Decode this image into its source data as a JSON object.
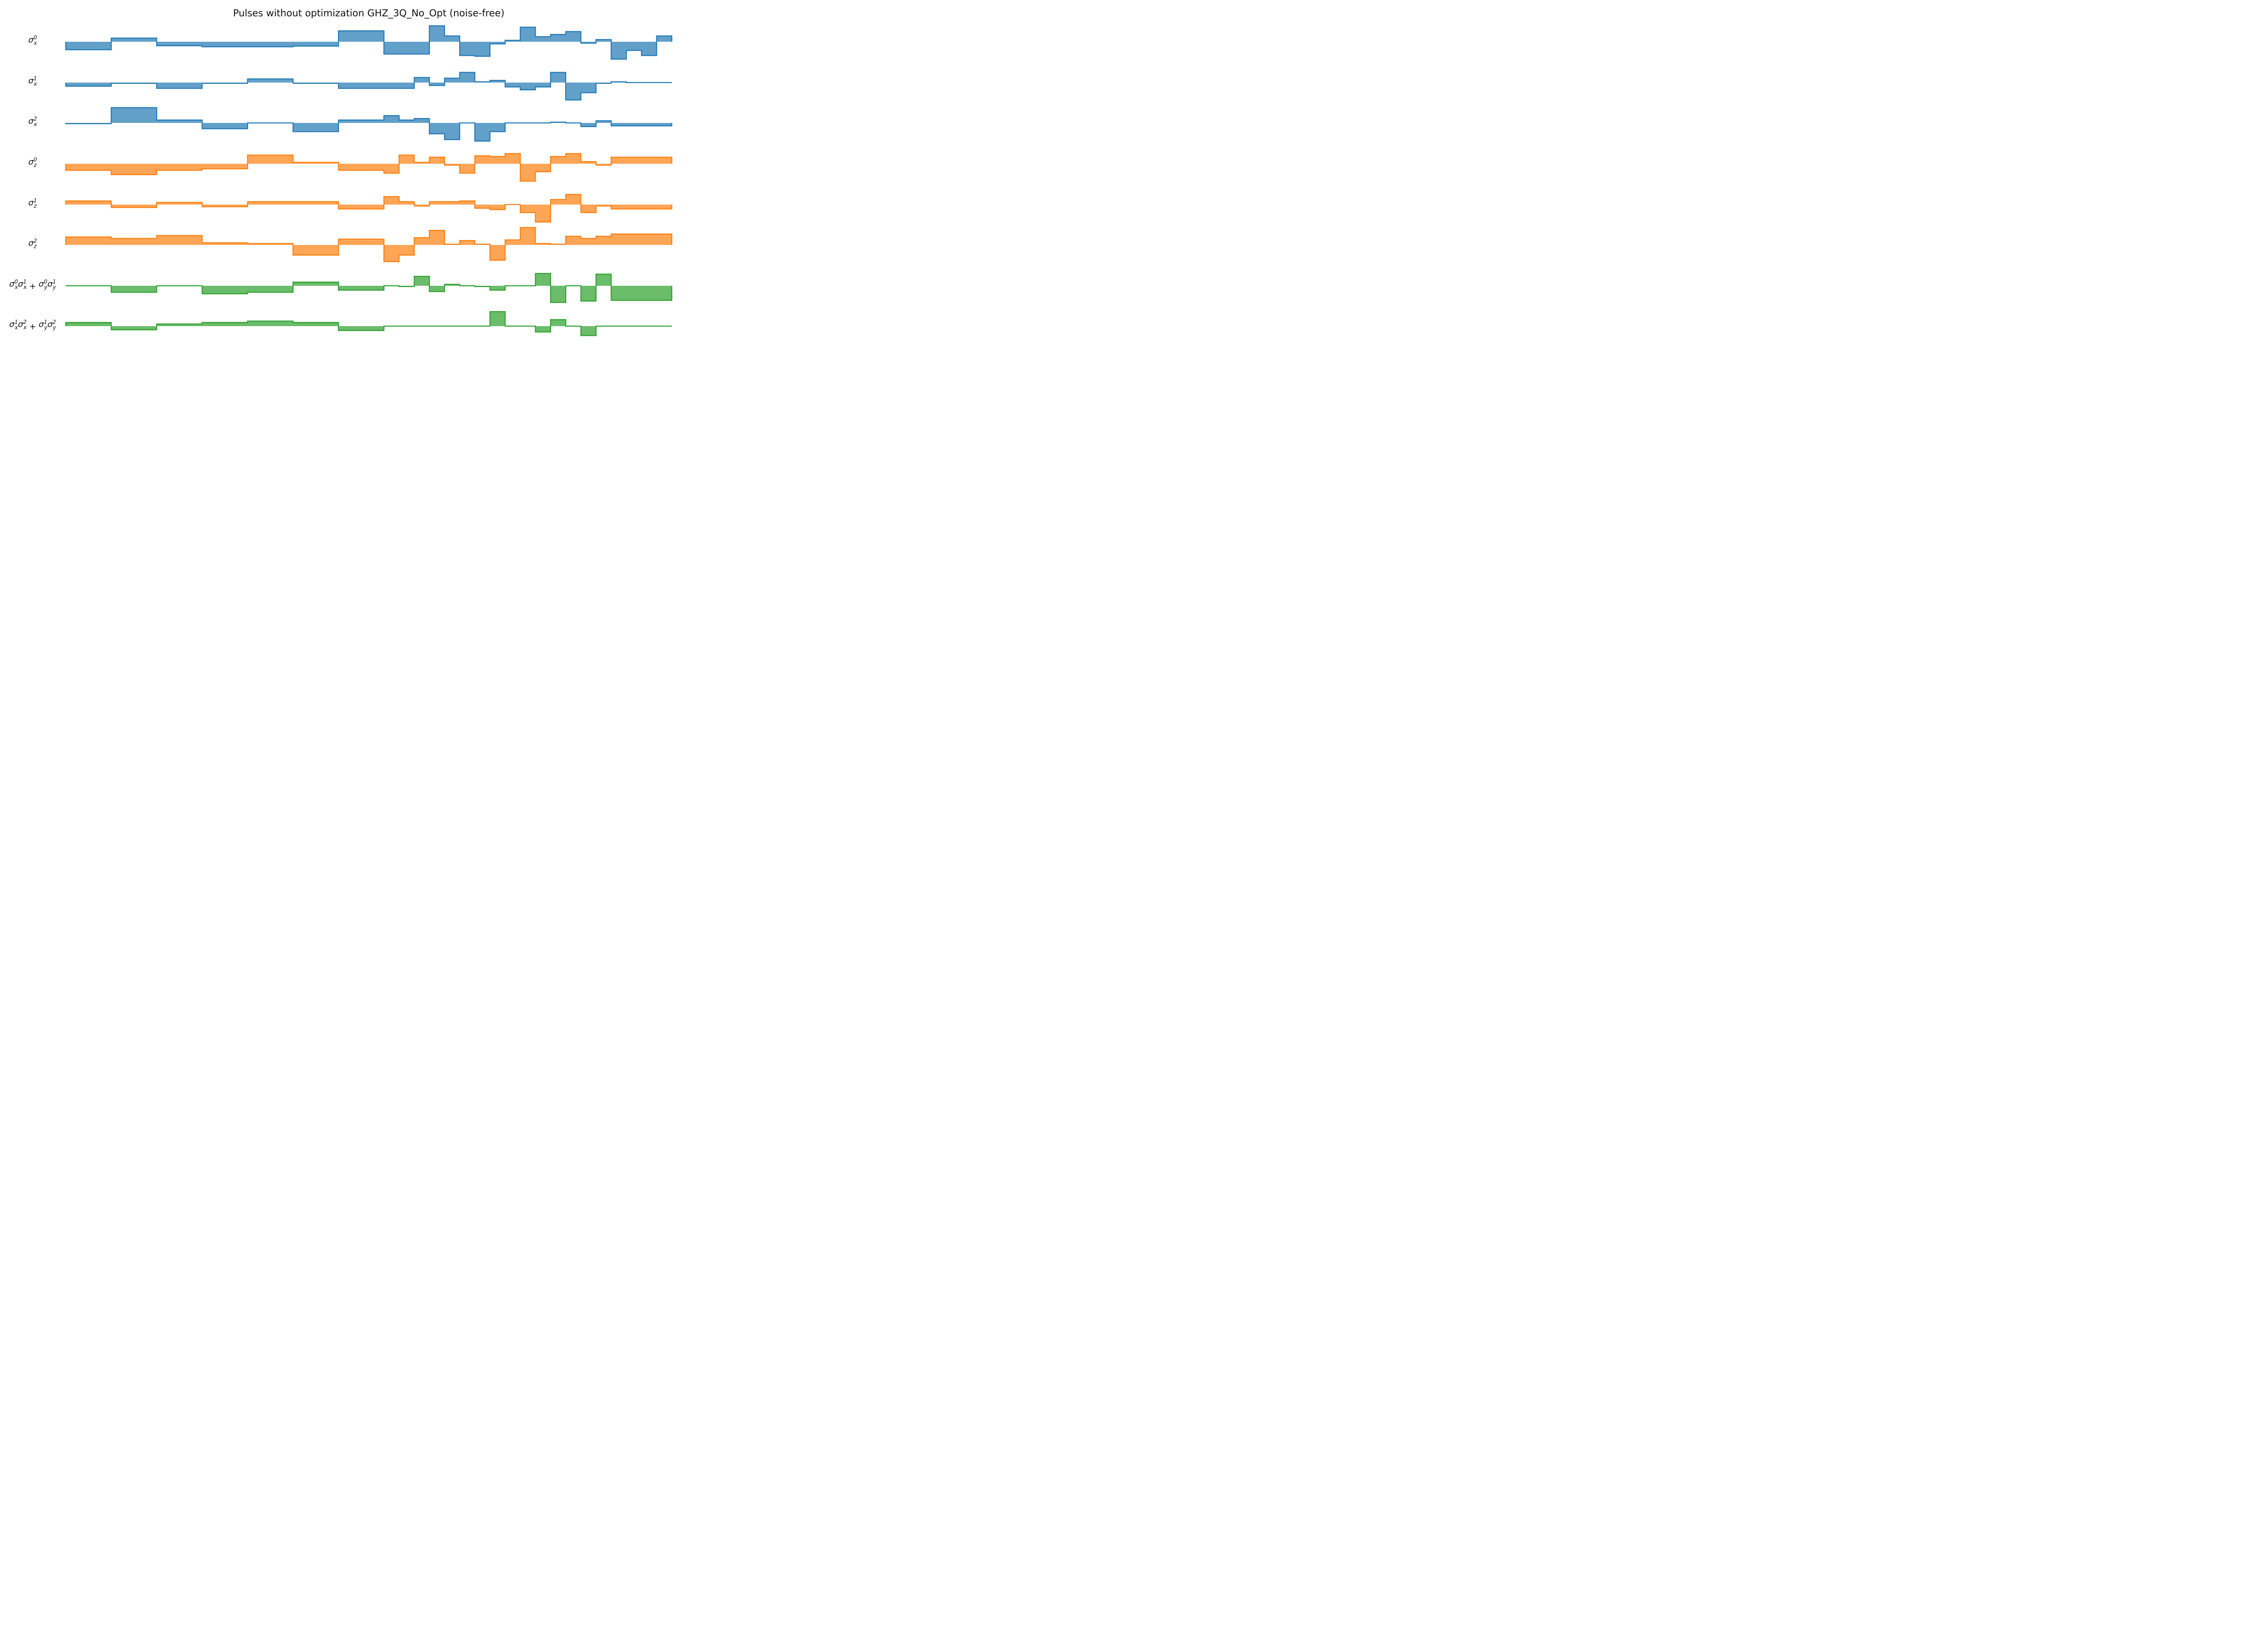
{
  "chart_data": {
    "type": "area",
    "title": "Pulses without optimization GHZ_3Q_No_Opt (noise-free)",
    "x": [
      0,
      1,
      2,
      3,
      4,
      5,
      6,
      7,
      8,
      9,
      10,
      11,
      12,
      13,
      14,
      15,
      16,
      17,
      18,
      19,
      20,
      21,
      22,
      23,
      24,
      25,
      26,
      27,
      28,
      29,
      30,
      31,
      32,
      33,
      34,
      35,
      36,
      37,
      38,
      39,
      40
    ],
    "step": "post",
    "axes_visible": false,
    "grid": false,
    "colors": {
      "x_terms": "#1f77b4",
      "z_terms": "#ff7f0e",
      "xy_terms": "#2ca02c"
    },
    "series": [
      {
        "label_base": "σ",
        "label_sup": "0",
        "label_sub": "x",
        "color_group": "x_terms",
        "values": [
          -0.55,
          -0.55,
          -0.55,
          0.25,
          0.25,
          0.25,
          -0.28,
          -0.28,
          -0.28,
          -0.35,
          -0.35,
          -0.35,
          -0.35,
          -0.35,
          -0.35,
          -0.3,
          -0.3,
          -0.3,
          0.75,
          0.75,
          0.75,
          -0.85,
          -0.85,
          -0.85,
          1.1,
          0.4,
          -0.95,
          -1.0,
          -0.15,
          0.1,
          1.0,
          0.35,
          0.5,
          0.7,
          -0.1,
          0.15,
          -1.2,
          -0.6,
          -0.95,
          0.4,
          0.4
        ]
      },
      {
        "label_base": "σ",
        "label_sup": "1",
        "label_sub": "x",
        "color_group": "x_terms",
        "values": [
          -0.25,
          -0.25,
          -0.25,
          -0.05,
          -0.05,
          -0.05,
          -0.4,
          -0.4,
          -0.4,
          -0.05,
          -0.05,
          -0.05,
          0.25,
          0.25,
          0.25,
          -0.05,
          -0.05,
          -0.05,
          -0.4,
          -0.4,
          -0.4,
          -0.4,
          -0.4,
          0.35,
          -0.2,
          0.3,
          0.7,
          0.05,
          0.15,
          -0.3,
          -0.5,
          -0.3,
          0.7,
          -1.2,
          -0.7,
          -0.05,
          0.05,
          0.0,
          0.0,
          0.0,
          0.0
        ]
      },
      {
        "label_base": "σ",
        "label_sup": "2",
        "label_sub": "x",
        "color_group": "x_terms",
        "values": [
          -0.05,
          -0.05,
          -0.05,
          1.05,
          1.05,
          1.05,
          0.2,
          0.2,
          0.2,
          -0.4,
          -0.4,
          -0.4,
          0.0,
          0.0,
          0.0,
          -0.6,
          -0.6,
          -0.6,
          0.2,
          0.2,
          0.2,
          0.5,
          0.2,
          0.3,
          -0.75,
          -1.15,
          0.0,
          -1.25,
          -0.6,
          0.0,
          0.0,
          0.0,
          0.05,
          0.0,
          -0.25,
          0.15,
          -0.2,
          -0.2,
          -0.2,
          -0.2,
          -0.2
        ]
      },
      {
        "label_base": "σ",
        "label_sup": "0",
        "label_sub": "z",
        "color_group": "z_terms",
        "values": [
          -0.45,
          -0.45,
          -0.45,
          -0.75,
          -0.75,
          -0.75,
          -0.45,
          -0.45,
          -0.45,
          -0.35,
          -0.35,
          -0.35,
          0.6,
          0.6,
          0.6,
          0.1,
          0.1,
          0.1,
          -0.45,
          -0.45,
          -0.45,
          -0.65,
          0.6,
          0.1,
          0.45,
          -0.1,
          -0.65,
          0.55,
          0.5,
          0.7,
          -1.2,
          -0.55,
          0.5,
          0.7,
          0.15,
          -0.1,
          0.45,
          0.45,
          0.45,
          0.45,
          0.45
        ]
      },
      {
        "label_base": "σ",
        "label_sup": "1",
        "label_sub": "z",
        "color_group": "z_terms",
        "values": [
          0.25,
          0.25,
          0.25,
          -0.2,
          -0.2,
          -0.2,
          0.15,
          0.15,
          0.15,
          -0.15,
          -0.15,
          -0.15,
          0.2,
          0.2,
          0.2,
          0.2,
          0.2,
          0.2,
          -0.3,
          -0.3,
          -0.3,
          0.55,
          0.2,
          -0.1,
          0.2,
          0.2,
          0.25,
          -0.25,
          -0.35,
          0.0,
          -0.55,
          -1.2,
          0.35,
          0.7,
          -0.55,
          -0.1,
          -0.3,
          -0.3,
          -0.3,
          -0.3,
          -0.3
        ]
      },
      {
        "label_base": "σ",
        "label_sup": "2",
        "label_sub": "z",
        "color_group": "z_terms",
        "values": [
          0.55,
          0.55,
          0.55,
          0.45,
          0.45,
          0.45,
          0.65,
          0.65,
          0.65,
          0.15,
          0.15,
          0.15,
          0.1,
          0.1,
          0.1,
          -0.7,
          -0.7,
          -0.7,
          0.4,
          0.4,
          0.4,
          -1.15,
          -0.7,
          0.5,
          1.0,
          0.05,
          0.3,
          0.05,
          -1.05,
          0.35,
          1.2,
          0.1,
          0.05,
          0.6,
          0.45,
          0.6,
          0.75,
          0.75,
          0.75,
          0.75,
          0.75
        ]
      },
      {
        "label_base": "σ",
        "label_sup_a": "0",
        "label_sub_a": "x",
        "label_sup_b": "1",
        "label_sub_b": "x",
        "label_sup_c": "0",
        "label_sub_c": "y",
        "label_sup_d": "1",
        "label_sub_d": "y",
        "color_group": "xy_terms",
        "values": [
          0.0,
          0.0,
          0.0,
          -0.45,
          -0.45,
          -0.45,
          0.0,
          0.0,
          0.0,
          -0.55,
          -0.55,
          -0.55,
          -0.45,
          -0.45,
          -0.45,
          0.25,
          0.25,
          0.25,
          -0.3,
          -0.3,
          -0.3,
          0.0,
          -0.05,
          0.65,
          -0.4,
          0.1,
          0.0,
          -0.05,
          -0.3,
          0.0,
          0.0,
          0.85,
          -1.15,
          0.0,
          -1.05,
          0.8,
          -1.0,
          -1.0,
          -1.0,
          -1.0,
          -1.0
        ]
      },
      {
        "label_base": "σ",
        "label_sup_a": "1",
        "label_sub_a": "x",
        "label_sup_b": "2",
        "label_sub_b": "x",
        "label_sup_c": "1",
        "label_sub_c": "y",
        "label_sup_d": "2",
        "label_sub_d": "y",
        "color_group": "xy_terms",
        "values": [
          0.25,
          0.25,
          0.25,
          -0.25,
          -0.25,
          -0.25,
          0.15,
          0.15,
          0.15,
          0.25,
          0.25,
          0.25,
          0.35,
          0.35,
          0.35,
          0.25,
          0.25,
          0.25,
          -0.3,
          -0.3,
          -0.3,
          0.0,
          0.0,
          0.0,
          0.0,
          0.0,
          0.0,
          0.0,
          1.0,
          0.0,
          0.0,
          -0.4,
          0.45,
          0.0,
          -0.65,
          0.0,
          0.0,
          0.0,
          0.0,
          0.0,
          0.0
        ]
      }
    ]
  }
}
